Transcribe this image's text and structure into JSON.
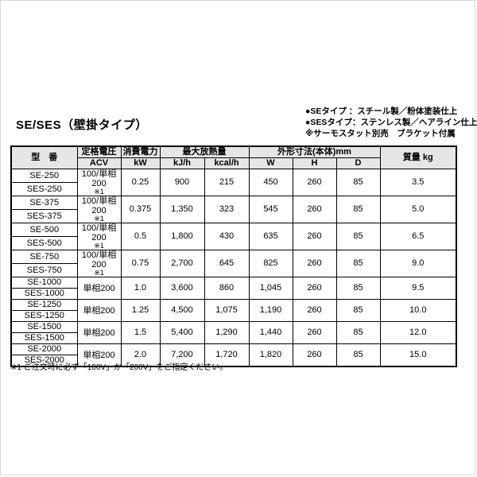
{
  "page": {
    "title": "SE/SES（壁掛タイプ）",
    "notes": [
      "●SEタイプ ：スチール製／粉体塗装仕上",
      "●SESタイプ：ステンレス製／ヘアライン仕上",
      "※サーモスタット別売　ブラケット付属"
    ],
    "footnote": "※1 ご注文時に必ず「100V」か「200V」をご指定ください。"
  },
  "table": {
    "header": {
      "model": "型　番",
      "voltage_label": "定格電圧",
      "voltage_unit": "ACV",
      "power_label": "消費電力",
      "power_unit": "kW",
      "heat_label": "最大放熱量",
      "heat_unit_kj": "kJ/h",
      "heat_unit_kcal": "kcal/h",
      "dimensions_label": "外形寸法(本体)mm",
      "dim_unit_w": "W",
      "dim_unit_h": "H",
      "dim_unit_d": "D",
      "weight_label": "質量 kg"
    },
    "rows": [
      {
        "models": [
          "SE-250",
          "SES-250"
        ],
        "voltage": "100/単相200",
        "voltage_note": "※1",
        "kw": "0.25",
        "kjh": "900",
        "kcalh": "215",
        "w": "450",
        "h": "260",
        "d": "85",
        "weight": "3.5"
      },
      {
        "models": [
          "SE-375",
          "SES-375"
        ],
        "voltage": "100/単相200",
        "voltage_note": "※1",
        "kw": "0.375",
        "kjh": "1,350",
        "kcalh": "323",
        "w": "545",
        "h": "260",
        "d": "85",
        "weight": "5.0"
      },
      {
        "models": [
          "SE-500",
          "SES-500"
        ],
        "voltage": "100/単相200",
        "voltage_note": "※1",
        "kw": "0.5",
        "kjh": "1,800",
        "kcalh": "430",
        "w": "635",
        "h": "260",
        "d": "85",
        "weight": "6.5"
      },
      {
        "models": [
          "SE-750",
          "SES-750"
        ],
        "voltage": "100/単相200",
        "voltage_note": "※1",
        "kw": "0.75",
        "kjh": "2,700",
        "kcalh": "645",
        "w": "825",
        "h": "260",
        "d": "85",
        "weight": "9.0"
      },
      {
        "models": [
          "SE-1000",
          "SES-1000"
        ],
        "voltage": "単相200",
        "voltage_note": "",
        "kw": "1.0",
        "kjh": "3,600",
        "kcalh": "860",
        "w": "1,045",
        "h": "260",
        "d": "85",
        "weight": "9.5"
      },
      {
        "models": [
          "SE-1250",
          "SES-1250"
        ],
        "voltage": "単相200",
        "voltage_note": "",
        "kw": "1.25",
        "kjh": "4,500",
        "kcalh": "1,075",
        "w": "1,190",
        "h": "260",
        "d": "85",
        "weight": "10.0"
      },
      {
        "models": [
          "SE-1500",
          "SES-1500"
        ],
        "voltage": "単相200",
        "voltage_note": "",
        "kw": "1.5",
        "kjh": "5,400",
        "kcalh": "1,290",
        "w": "1,440",
        "h": "260",
        "d": "85",
        "weight": "12.0"
      },
      {
        "models": [
          "SE-2000",
          "SES-2000"
        ],
        "voltage": "単相200",
        "voltage_note": "",
        "kw": "2.0",
        "kjh": "7,200",
        "kcalh": "1,720",
        "w": "1,820",
        "h": "260",
        "d": "85",
        "weight": "15.0"
      }
    ]
  },
  "colors": {
    "header_bg": "#e6e6e6",
    "border": "#000000",
    "text": "#000000",
    "frame": "#d9d9d9"
  }
}
